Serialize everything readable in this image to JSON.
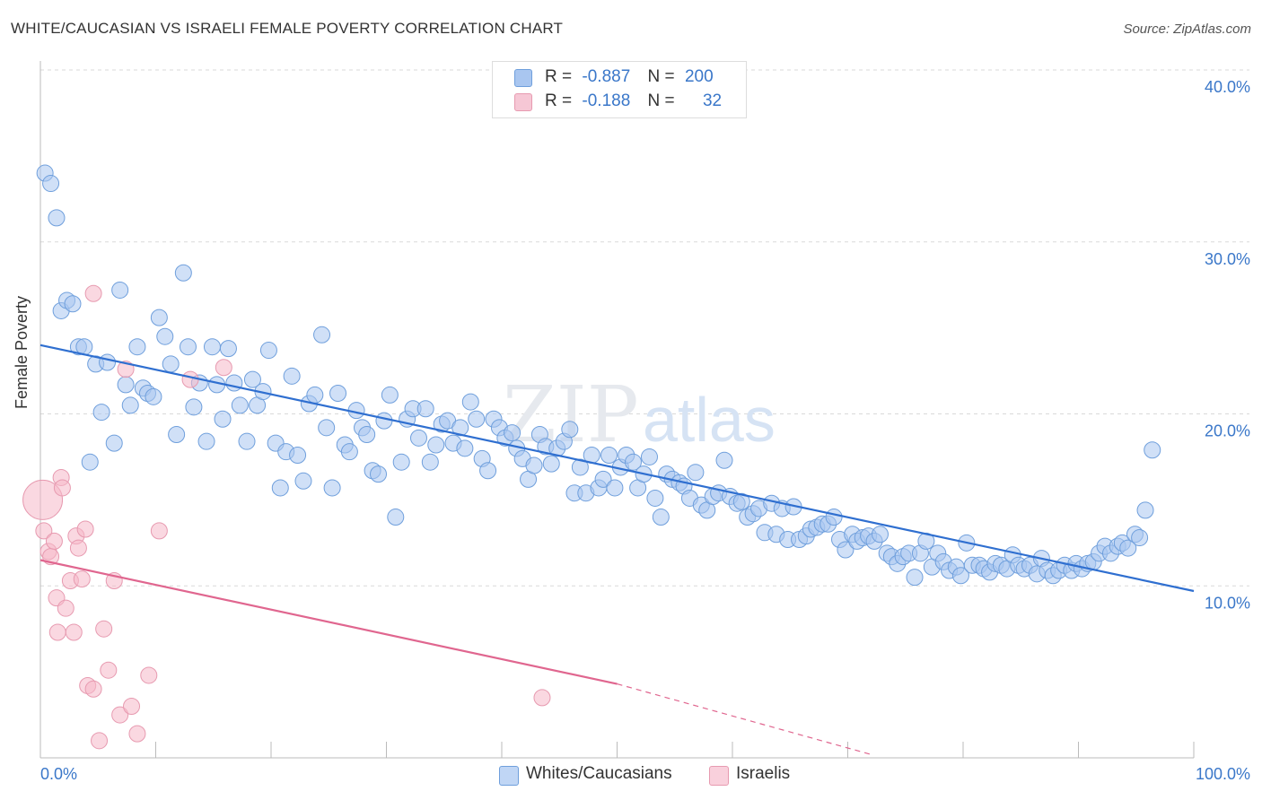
{
  "title": "WHITE/CAUCASIAN VS ISRAELI FEMALE POVERTY CORRELATION CHART",
  "source": "Source: ZipAtlas.com",
  "watermark": "ZIPatlas",
  "legend": {
    "rows": [
      {
        "r_label": "R =",
        "r_value": "-0.887",
        "n_label": "N =",
        "n_value": "200",
        "color": "#a9c6f0"
      },
      {
        "r_label": "R =",
        "r_value": "-0.188",
        "n_label": "N =",
        "n_value": "32",
        "color": "#f6b8c9"
      }
    ]
  },
  "bottom_legend": [
    {
      "label": "Whites/Caucasians",
      "color": "#a9c6f0"
    },
    {
      "label": "Israelis",
      "color": "#f6b8c9"
    }
  ],
  "chart_data": {
    "type": "scatter",
    "title": "WHITE/CAUCASIAN VS ISRAELI FEMALE POVERTY CORRELATION CHART",
    "xlabel": "",
    "ylabel": "Female Poverty",
    "xlim": [
      0,
      100
    ],
    "ylim": [
      0,
      40
    ],
    "x_tick_labels": [
      "0.0%",
      "100.0%"
    ],
    "y_tick_labels": [
      "10.0%",
      "20.0%",
      "30.0%",
      "40.0%"
    ],
    "y_ticks": [
      10,
      20,
      30,
      40
    ],
    "grid": "horizontal dashed",
    "legend_position": "top-center",
    "series": [
      {
        "name": "Whites/Caucasians",
        "color": "#a9c6f0",
        "stroke": "#6f9fdc",
        "line_color": "#2f6fd0",
        "trend": {
          "x": [
            0,
            100
          ],
          "y": [
            24.0,
            9.7
          ]
        },
        "points": [
          [
            0.4,
            34
          ],
          [
            0.9,
            33.4
          ],
          [
            1.4,
            31.4
          ],
          [
            1.8,
            26
          ],
          [
            2.3,
            26.6
          ],
          [
            2.8,
            26.4
          ],
          [
            3.3,
            23.9
          ],
          [
            3.8,
            23.9
          ],
          [
            4.3,
            17.2
          ],
          [
            4.8,
            22.9
          ],
          [
            5.3,
            20.1
          ],
          [
            5.8,
            23.0
          ],
          [
            6.4,
            18.3
          ],
          [
            6.9,
            27.2
          ],
          [
            7.4,
            21.7
          ],
          [
            7.8,
            20.5
          ],
          [
            8.4,
            23.9
          ],
          [
            8.9,
            21.5
          ],
          [
            9.3,
            21.2
          ],
          [
            9.8,
            21.0
          ],
          [
            10.3,
            25.6
          ],
          [
            10.8,
            24.5
          ],
          [
            11.3,
            22.9
          ],
          [
            11.8,
            18.8
          ],
          [
            12.4,
            28.2
          ],
          [
            12.8,
            23.9
          ],
          [
            13.3,
            20.4
          ],
          [
            13.8,
            21.8
          ],
          [
            14.4,
            18.4
          ],
          [
            14.9,
            23.9
          ],
          [
            15.3,
            21.7
          ],
          [
            15.8,
            19.7
          ],
          [
            16.3,
            23.8
          ],
          [
            16.8,
            21.8
          ],
          [
            17.3,
            20.5
          ],
          [
            17.9,
            18.4
          ],
          [
            18.4,
            22.0
          ],
          [
            18.8,
            20.5
          ],
          [
            19.3,
            21.3
          ],
          [
            19.8,
            23.7
          ],
          [
            20.4,
            18.3
          ],
          [
            20.8,
            15.7
          ],
          [
            21.3,
            17.8
          ],
          [
            21.8,
            22.2
          ],
          [
            22.3,
            17.6
          ],
          [
            22.8,
            16.1
          ],
          [
            23.3,
            20.6
          ],
          [
            23.8,
            21.1
          ],
          [
            24.4,
            24.6
          ],
          [
            24.8,
            19.2
          ],
          [
            25.3,
            15.7
          ],
          [
            25.8,
            21.2
          ],
          [
            26.4,
            18.2
          ],
          [
            26.8,
            17.8
          ],
          [
            27.4,
            20.2
          ],
          [
            27.9,
            19.2
          ],
          [
            28.3,
            18.8
          ],
          [
            28.8,
            16.7
          ],
          [
            29.3,
            16.5
          ],
          [
            29.8,
            19.6
          ],
          [
            30.3,
            21.1
          ],
          [
            30.8,
            14.0
          ],
          [
            31.3,
            17.2
          ],
          [
            31.8,
            19.7
          ],
          [
            32.3,
            20.3
          ],
          [
            32.8,
            18.6
          ],
          [
            33.4,
            20.3
          ],
          [
            33.8,
            17.2
          ],
          [
            34.3,
            18.2
          ],
          [
            34.8,
            19.4
          ],
          [
            35.3,
            19.6
          ],
          [
            35.8,
            18.3
          ],
          [
            36.4,
            19.2
          ],
          [
            36.8,
            18.0
          ],
          [
            37.3,
            20.7
          ],
          [
            37.8,
            19.7
          ],
          [
            38.3,
            17.4
          ],
          [
            38.8,
            16.7
          ],
          [
            39.3,
            19.7
          ],
          [
            39.8,
            19.2
          ],
          [
            40.3,
            18.6
          ],
          [
            40.9,
            18.9
          ],
          [
            41.3,
            18.0
          ],
          [
            41.8,
            17.4
          ],
          [
            42.3,
            16.2
          ],
          [
            42.8,
            17.0
          ],
          [
            43.3,
            18.8
          ],
          [
            43.8,
            18.1
          ],
          [
            44.3,
            17.1
          ],
          [
            44.8,
            18.0
          ],
          [
            45.4,
            18.4
          ],
          [
            45.9,
            19.1
          ],
          [
            46.3,
            15.4
          ],
          [
            46.8,
            16.9
          ],
          [
            47.3,
            15.4
          ],
          [
            47.8,
            17.6
          ],
          [
            48.4,
            15.7
          ],
          [
            48.8,
            16.2
          ],
          [
            49.3,
            17.6
          ],
          [
            49.8,
            15.7
          ],
          [
            50.3,
            16.9
          ],
          [
            50.8,
            17.6
          ],
          [
            51.4,
            17.2
          ],
          [
            51.8,
            15.7
          ],
          [
            52.3,
            16.5
          ],
          [
            52.8,
            17.5
          ],
          [
            53.3,
            15.1
          ],
          [
            53.8,
            14.0
          ],
          [
            54.3,
            16.5
          ],
          [
            54.8,
            16.2
          ],
          [
            55.4,
            16.0
          ],
          [
            55.8,
            15.8
          ],
          [
            56.3,
            15.1
          ],
          [
            56.8,
            16.6
          ],
          [
            57.3,
            14.7
          ],
          [
            57.8,
            14.4
          ],
          [
            58.3,
            15.2
          ],
          [
            58.8,
            15.4
          ],
          [
            59.3,
            17.3
          ],
          [
            59.8,
            15.2
          ],
          [
            60.4,
            14.8
          ],
          [
            60.8,
            14.9
          ],
          [
            61.3,
            14.0
          ],
          [
            61.8,
            14.2
          ],
          [
            62.3,
            14.5
          ],
          [
            62.8,
            13.1
          ],
          [
            63.4,
            14.8
          ],
          [
            63.8,
            13.0
          ],
          [
            64.3,
            14.5
          ],
          [
            64.8,
            12.7
          ],
          [
            65.3,
            14.6
          ],
          [
            65.8,
            12.7
          ],
          [
            66.4,
            12.9
          ],
          [
            66.8,
            13.3
          ],
          [
            67.3,
            13.4
          ],
          [
            67.8,
            13.6
          ],
          [
            68.3,
            13.6
          ],
          [
            68.8,
            14.0
          ],
          [
            69.3,
            12.7
          ],
          [
            69.8,
            12.1
          ],
          [
            70.4,
            13.0
          ],
          [
            70.8,
            12.6
          ],
          [
            71.3,
            12.8
          ],
          [
            71.8,
            12.9
          ],
          [
            72.3,
            12.6
          ],
          [
            72.8,
            13.0
          ],
          [
            73.4,
            11.9
          ],
          [
            73.8,
            11.7
          ],
          [
            74.3,
            11.3
          ],
          [
            74.8,
            11.7
          ],
          [
            75.3,
            11.9
          ],
          [
            75.8,
            10.5
          ],
          [
            76.3,
            11.9
          ],
          [
            76.8,
            12.6
          ],
          [
            77.3,
            11.1
          ],
          [
            77.8,
            11.9
          ],
          [
            78.3,
            11.4
          ],
          [
            78.8,
            10.9
          ],
          [
            79.4,
            11.1
          ],
          [
            79.8,
            10.6
          ],
          [
            80.3,
            12.5
          ],
          [
            80.8,
            11.2
          ],
          [
            81.4,
            11.2
          ],
          [
            81.8,
            11.0
          ],
          [
            82.3,
            10.8
          ],
          [
            82.8,
            11.3
          ],
          [
            83.3,
            11.2
          ],
          [
            83.8,
            11.0
          ],
          [
            84.3,
            11.8
          ],
          [
            84.8,
            11.2
          ],
          [
            85.3,
            11.0
          ],
          [
            85.8,
            11.2
          ],
          [
            86.4,
            10.7
          ],
          [
            86.8,
            11.6
          ],
          [
            87.3,
            10.9
          ],
          [
            87.8,
            10.6
          ],
          [
            88.3,
            10.9
          ],
          [
            88.8,
            11.2
          ],
          [
            89.4,
            10.9
          ],
          [
            89.8,
            11.3
          ],
          [
            90.3,
            11.0
          ],
          [
            90.8,
            11.3
          ],
          [
            91.3,
            11.4
          ],
          [
            91.8,
            11.9
          ],
          [
            92.3,
            12.3
          ],
          [
            92.8,
            11.9
          ],
          [
            93.4,
            12.3
          ],
          [
            93.8,
            12.5
          ],
          [
            94.3,
            12.2
          ],
          [
            94.9,
            13.0
          ],
          [
            95.3,
            12.8
          ],
          [
            95.8,
            14.4
          ],
          [
            96.4,
            17.9
          ]
        ]
      },
      {
        "name": "Israelis",
        "color": "#f6b8c9",
        "stroke": "#e79ab0",
        "line_color": "#e0668f",
        "trend": {
          "x": [
            0,
            50,
            72
          ],
          "y": [
            11.5,
            4.3,
            0.2
          ]
        },
        "points": [
          [
            0.2,
            15.0,
            "large"
          ],
          [
            0.3,
            13.2
          ],
          [
            0.7,
            12.0
          ],
          [
            0.9,
            11.7
          ],
          [
            1.2,
            12.6
          ],
          [
            1.4,
            9.3
          ],
          [
            1.5,
            7.3
          ],
          [
            1.8,
            16.3
          ],
          [
            1.9,
            15.7
          ],
          [
            2.2,
            8.7
          ],
          [
            2.6,
            10.3
          ],
          [
            2.9,
            7.3
          ],
          [
            3.1,
            12.9
          ],
          [
            3.3,
            12.2
          ],
          [
            3.6,
            10.4
          ],
          [
            3.9,
            13.3
          ],
          [
            4.1,
            4.2
          ],
          [
            4.6,
            4.0
          ],
          [
            4.6,
            27.0
          ],
          [
            5.1,
            1.0
          ],
          [
            5.5,
            7.5
          ],
          [
            5.9,
            5.1
          ],
          [
            6.4,
            10.3
          ],
          [
            6.9,
            2.5
          ],
          [
            7.4,
            22.6
          ],
          [
            7.9,
            3.0
          ],
          [
            8.4,
            1.4
          ],
          [
            9.4,
            4.8
          ],
          [
            10.3,
            13.2
          ],
          [
            13.0,
            22.0
          ],
          [
            15.9,
            22.7
          ],
          [
            43.5,
            3.5
          ]
        ]
      }
    ]
  }
}
